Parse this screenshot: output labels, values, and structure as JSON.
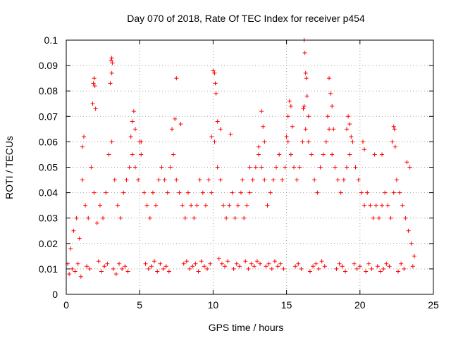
{
  "chart_data": {
    "type": "scatter",
    "title": "Day 070 of 2018, Rate Of TEC Index for receiver p454",
    "xlabel": "GPS time / hours",
    "ylabel": "ROTI / TECUs",
    "xlim": [
      0,
      25
    ],
    "ylim": [
      0,
      0.1
    ],
    "xticks": [
      0,
      5,
      10,
      15,
      20,
      25
    ],
    "xtick_labels": [
      "0",
      "5",
      "10",
      "15",
      "20",
      "25"
    ],
    "yticks": [
      0,
      0.01,
      0.02,
      0.03,
      0.04,
      0.05,
      0.06,
      0.07,
      0.08,
      0.09,
      0.1
    ],
    "ytick_labels": [
      "0",
      "0.01",
      "0.02",
      "0.03",
      "0.04",
      "0.05",
      "0.06",
      "0.07",
      "0.08",
      "0.09",
      "0.1"
    ],
    "grid": true,
    "marker": "+",
    "point_color": "#ff0000",
    "series": [
      {
        "name": "ROTI",
        "x": [
          0.1,
          0.3,
          0.5,
          0.7,
          0.9,
          1.1,
          1.3,
          1.5,
          1.7,
          1.9,
          2.1,
          2.3,
          2.5,
          2.7,
          2.9,
          3.1,
          3.3,
          3.5,
          3.7,
          3.9,
          4.1,
          4.3,
          4.5,
          4.7,
          4.9,
          5.1,
          5.3,
          5.5,
          5.7,
          5.9,
          6.1,
          6.3,
          6.5,
          6.7,
          6.9,
          7.1,
          7.3,
          7.5,
          7.7,
          7.9,
          8.1,
          8.3,
          8.5,
          8.7,
          8.9,
          9.1,
          9.3,
          9.5,
          9.7,
          9.9,
          10.1,
          10.3,
          10.5,
          10.7,
          10.9,
          11.1,
          11.3,
          11.5,
          11.7,
          11.9,
          12.1,
          12.3,
          12.5,
          12.7,
          12.9,
          13.1,
          13.3,
          13.5,
          13.7,
          13.9,
          14.1,
          14.3,
          14.5,
          14.7,
          14.9,
          15.1,
          15.3,
          15.5,
          15.7,
          15.9,
          16.1,
          16.3,
          16.5,
          16.7,
          16.9,
          17.1,
          17.3,
          17.5,
          17.7,
          17.9,
          18.1,
          18.3,
          18.5,
          18.7,
          18.9,
          19.1,
          19.3,
          19.5,
          19.7,
          19.9,
          20.1,
          20.3,
          20.5,
          20.7,
          20.9,
          21.1,
          21.3,
          21.5,
          21.7,
          21.9,
          22.1,
          22.3,
          22.5,
          22.7,
          22.9,
          23.1,
          23.3,
          23.5,
          23.7,
          3.05,
          3.1,
          3.15,
          3.0,
          3.1,
          1.9,
          1.85,
          1.95,
          1.8,
          2.0,
          1.2,
          1.1,
          4.6,
          4.5,
          4.7,
          4.4,
          5.0,
          5.1,
          7.2,
          7.4,
          7.8,
          7.5,
          10.0,
          10.1,
          10.2,
          10.15,
          10.3,
          9.9,
          10.5,
          11.2,
          12.0,
          12.5,
          13.3,
          13.4,
          13.5,
          13.1,
          15.2,
          15.3,
          15.1,
          15.4,
          15.0,
          16.2,
          16.25,
          16.3,
          16.35,
          16.4,
          16.15,
          16.2,
          16.5,
          17.9,
          18.0,
          18.1,
          17.8,
          18.2,
          19.2,
          19.3,
          19.1,
          19.4,
          20.2,
          20.3,
          21.0,
          21.5,
          22.3,
          22.35,
          22.4,
          22.2,
          23.2,
          23.4,
          0.2,
          0.4,
          0.6,
          0.8,
          1.0,
          1.4,
          1.6,
          2.2,
          2.4,
          2.6,
          2.8,
          3.2,
          3.4,
          3.6,
          3.8,
          4.0,
          4.2,
          5.4,
          5.6,
          5.8,
          6.0,
          6.2,
          6.4,
          6.6,
          6.8,
          7.0,
          8.0,
          8.2,
          8.4,
          8.6,
          8.8,
          9.0,
          9.2,
          9.4,
          9.6,
          9.8,
          10.4,
          10.6,
          10.8,
          11.0,
          11.4,
          11.6,
          11.8,
          12.2,
          12.4,
          12.6,
          12.8,
          13.0,
          13.2,
          13.6,
          13.8,
          14.0,
          14.2,
          14.4,
          14.6,
          14.8,
          15.6,
          15.8,
          16.0,
          16.6,
          16.8,
          17.0,
          17.2,
          17.4,
          17.6,
          18.4,
          18.6,
          18.8,
          19.0,
          19.6,
          19.8,
          20.0,
          20.4,
          20.6,
          20.8,
          21.2,
          21.4,
          21.6,
          21.8,
          22.0,
          22.6,
          22.8,
          23.0,
          23.6
        ],
        "y": [
          0.012,
          0.018,
          0.025,
          0.03,
          0.022,
          0.045,
          0.035,
          0.03,
          0.05,
          0.04,
          0.028,
          0.035,
          0.03,
          0.04,
          0.055,
          0.06,
          0.045,
          0.035,
          0.03,
          0.04,
          0.045,
          0.05,
          0.055,
          0.05,
          0.045,
          0.06,
          0.04,
          0.035,
          0.03,
          0.04,
          0.035,
          0.045,
          0.05,
          0.045,
          0.04,
          0.05,
          0.055,
          0.045,
          0.04,
          0.035,
          0.03,
          0.04,
          0.035,
          0.03,
          0.035,
          0.045,
          0.04,
          0.035,
          0.045,
          0.04,
          0.06,
          0.05,
          0.045,
          0.035,
          0.03,
          0.035,
          0.04,
          0.03,
          0.035,
          0.04,
          0.03,
          0.035,
          0.04,
          0.045,
          0.05,
          0.055,
          0.05,
          0.045,
          0.035,
          0.04,
          0.045,
          0.05,
          0.055,
          0.045,
          0.05,
          0.06,
          0.055,
          0.05,
          0.045,
          0.05,
          0.06,
          0.065,
          0.06,
          0.055,
          0.045,
          0.04,
          0.05,
          0.055,
          0.06,
          0.065,
          0.055,
          0.05,
          0.045,
          0.04,
          0.045,
          0.05,
          0.055,
          0.06,
          0.05,
          0.045,
          0.04,
          0.035,
          0.04,
          0.035,
          0.03,
          0.035,
          0.03,
          0.035,
          0.04,
          0.035,
          0.03,
          0.04,
          0.045,
          0.04,
          0.035,
          0.03,
          0.025,
          0.02,
          0.015,
          0.092,
          0.093,
          0.091,
          0.083,
          0.087,
          0.085,
          0.083,
          0.082,
          0.075,
          0.073,
          0.062,
          0.058,
          0.072,
          0.068,
          0.065,
          0.062,
          0.06,
          0.055,
          0.065,
          0.069,
          0.067,
          0.085,
          0.088,
          0.087,
          0.079,
          0.083,
          0.068,
          0.062,
          0.065,
          0.063,
          0.045,
          0.05,
          0.072,
          0.066,
          0.06,
          0.058,
          0.076,
          0.074,
          0.07,
          0.066,
          0.062,
          0.1,
          0.095,
          0.087,
          0.085,
          0.078,
          0.073,
          0.074,
          0.07,
          0.085,
          0.079,
          0.074,
          0.07,
          0.065,
          0.07,
          0.067,
          0.065,
          0.062,
          0.06,
          0.057,
          0.055,
          0.055,
          0.066,
          0.065,
          0.058,
          0.06,
          0.052,
          0.05,
          0.008,
          0.01,
          0.009,
          0.012,
          0.007,
          0.011,
          0.01,
          0.013,
          0.009,
          0.011,
          0.012,
          0.01,
          0.008,
          0.012,
          0.01,
          0.011,
          0.009,
          0.012,
          0.01,
          0.011,
          0.013,
          0.009,
          0.012,
          0.01,
          0.011,
          0.009,
          0.012,
          0.013,
          0.01,
          0.011,
          0.012,
          0.009,
          0.013,
          0.011,
          0.01,
          0.012,
          0.014,
          0.012,
          0.011,
          0.013,
          0.01,
          0.012,
          0.011,
          0.013,
          0.01,
          0.012,
          0.011,
          0.013,
          0.012,
          0.011,
          0.012,
          0.01,
          0.013,
          0.011,
          0.012,
          0.01,
          0.011,
          0.012,
          0.01,
          0.009,
          0.011,
          0.012,
          0.01,
          0.013,
          0.011,
          0.01,
          0.012,
          0.011,
          0.009,
          0.012,
          0.01,
          0.011,
          0.009,
          0.012,
          0.01,
          0.011,
          0.009,
          0.01,
          0.012,
          0.011,
          0.009,
          0.012,
          0.01,
          0.011
        ]
      }
    ]
  }
}
